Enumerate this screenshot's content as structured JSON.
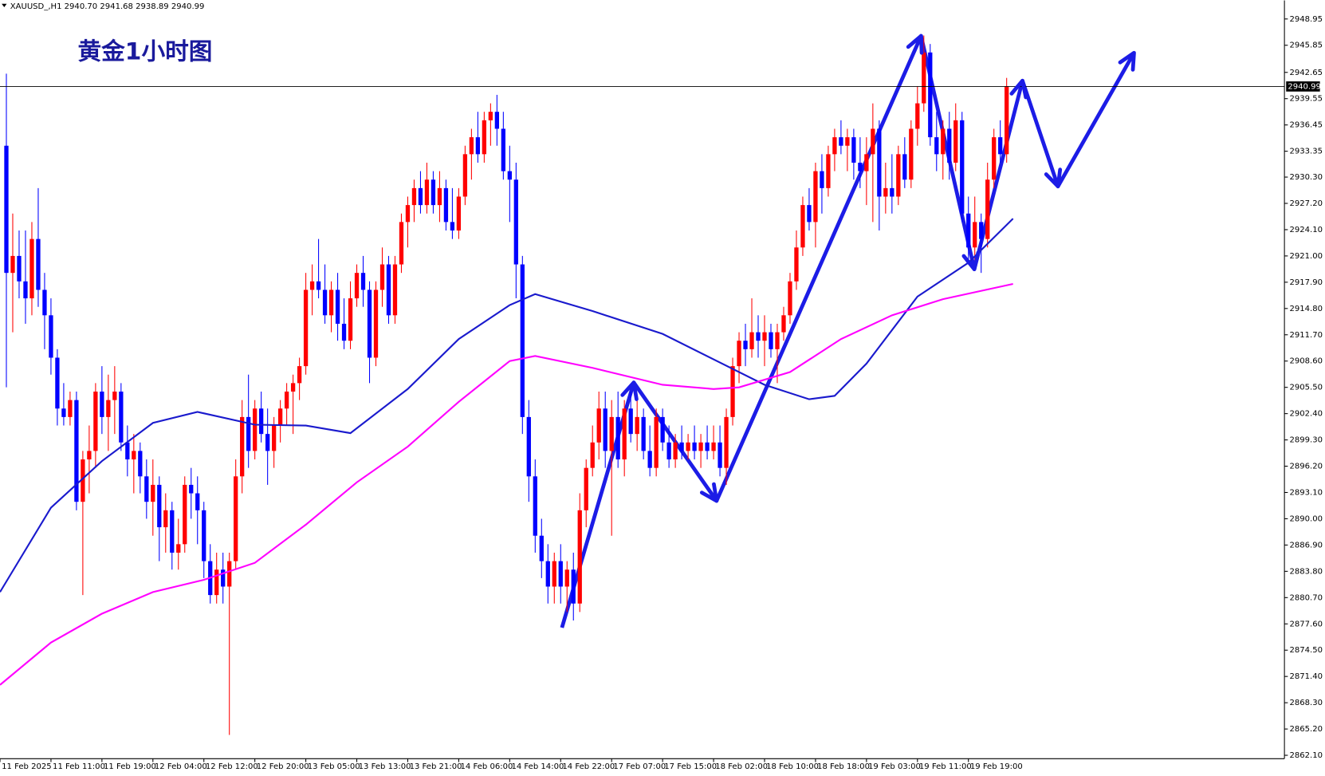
{
  "header": {
    "text": "XAUUSD_,H1  2940.70 2941.68 2938.89 2940.99"
  },
  "chart_data": {
    "type": "candlestick",
    "title": "黄金1小时图",
    "up_color": "#ff0000",
    "down_color": "#0000ff",
    "xlim": [
      -1,
      200.6
    ],
    "ylim": [
      2861.7,
      2951.14
    ],
    "last_price": 2940.99,
    "xticks": [
      {
        "value": -1,
        "label": "11 Feb 2025"
      },
      {
        "value": 7,
        "label": "11 Feb 11:00"
      },
      {
        "value": 15,
        "label": "11 Feb 19:00"
      },
      {
        "value": 23,
        "label": "12 Feb 04:00"
      },
      {
        "value": 31,
        "label": "12 Feb 12:00"
      },
      {
        "value": 39,
        "label": "12 Feb 20:00"
      },
      {
        "value": 47,
        "label": "13 Feb 05:00"
      },
      {
        "value": 55,
        "label": "13 Feb 13:00"
      },
      {
        "value": 63,
        "label": "13 Feb 21:00"
      },
      {
        "value": 71,
        "label": "14 Feb 06:00"
      },
      {
        "value": 79,
        "label": "14 Feb 14:00"
      },
      {
        "value": 87,
        "label": "14 Feb 22:00"
      },
      {
        "value": 95,
        "label": "17 Feb 07:00"
      },
      {
        "value": 103,
        "label": "17 Feb 15:00"
      },
      {
        "value": 111,
        "label": "18 Feb 02:00"
      },
      {
        "value": 119,
        "label": "18 Feb 10:00"
      },
      {
        "value": 127,
        "label": "18 Feb 18:00"
      },
      {
        "value": 135,
        "label": "19 Feb 03:00"
      },
      {
        "value": 143,
        "label": "19 Feb 11:00"
      },
      {
        "value": 151,
        "label": "19 Feb 19:00"
      }
    ],
    "yticks": [
      2948.95,
      2945.85,
      2942.65,
      2939.55,
      2936.45,
      2933.35,
      {
        "value": 2930.3,
        "label": "2930.30"
      },
      {
        "value": 2927.2,
        "label": "2927.20"
      },
      {
        "value": 2924.1,
        "label": "2924.10"
      },
      {
        "value": 2921,
        "label": "2921.00"
      },
      {
        "value": 2917.9,
        "label": "2917.90"
      },
      {
        "value": 2914.8,
        "label": "2914.80"
      },
      {
        "value": 2911.7,
        "label": "2911.70"
      },
      {
        "value": 2908.6,
        "label": "2908.60"
      },
      {
        "value": 2905.5,
        "label": "2905.50"
      },
      {
        "value": 2902.4,
        "label": "2902.40"
      },
      {
        "value": 2899.3,
        "label": "2899.30"
      },
      {
        "value": 2896.2,
        "label": "2896.20"
      },
      {
        "value": 2893.1,
        "label": "2893.10"
      },
      {
        "value": 2890,
        "label": "2890.00"
      },
      {
        "value": 2886.9,
        "label": "2886.90"
      },
      {
        "value": 2883.8,
        "label": "2883.80"
      },
      {
        "value": 2880.7,
        "label": "2880.70"
      },
      {
        "value": 2877.6,
        "label": "2877.60"
      },
      {
        "value": 2874.5,
        "label": "2874.50"
      },
      {
        "value": 2871.4,
        "label": "2871.40"
      },
      {
        "value": 2868.3,
        "label": "2868.30"
      },
      {
        "value": 2865.2,
        "label": "2865.20"
      },
      {
        "value": 2862.1,
        "label": "2862.10"
      }
    ],
    "ohlc": [
      [
        2934,
        2942.5,
        2905.5,
        2919
      ],
      [
        2919,
        2926,
        2912,
        2921
      ],
      [
        2921,
        2924,
        2916,
        2918
      ],
      [
        2918,
        2924,
        2913,
        2916
      ],
      [
        2916,
        2925,
        2914,
        2923
      ],
      [
        2923,
        2929,
        2915,
        2917
      ],
      [
        2917,
        2919,
        2910,
        2914
      ],
      [
        2914,
        2916,
        2907,
        2909
      ],
      [
        2909,
        2910,
        2901,
        2903
      ],
      [
        2903,
        2906,
        2901,
        2902
      ],
      [
        2902,
        2905,
        2901,
        2904
      ],
      [
        2904,
        2905,
        2891,
        2892
      ],
      [
        2892,
        2898,
        2881,
        2897
      ],
      [
        2897,
        2901,
        2893,
        2898
      ],
      [
        2898,
        2906,
        2896,
        2905
      ],
      [
        2905,
        2908,
        2900,
        2902
      ],
      [
        2902,
        2907,
        2898,
        2904
      ],
      [
        2904,
        2908,
        2900,
        2905
      ],
      [
        2905,
        2906,
        2898,
        2899
      ],
      [
        2899,
        2901,
        2895,
        2897
      ],
      [
        2897,
        2900,
        2893,
        2898
      ],
      [
        2898,
        2899,
        2893,
        2895
      ],
      [
        2895,
        2897,
        2890,
        2892
      ],
      [
        2892,
        2897,
        2888,
        2894
      ],
      [
        2894,
        2895,
        2885,
        2889
      ],
      [
        2889,
        2893,
        2886,
        2891
      ],
      [
        2891,
        2892,
        2884,
        2886
      ],
      [
        2886,
        2890,
        2884,
        2887
      ],
      [
        2887,
        2895,
        2886,
        2894
      ],
      [
        2894,
        2896,
        2890,
        2893
      ],
      [
        2893,
        2895,
        2887,
        2891
      ],
      [
        2891,
        2892,
        2883,
        2885
      ],
      [
        2885,
        2887,
        2880,
        2881
      ],
      [
        2881,
        2886,
        2880,
        2884
      ],
      [
        2884,
        2886,
        2880,
        2882
      ],
      [
        2882,
        2886,
        2864.5,
        2885
      ],
      [
        2885,
        2897,
        2884,
        2895
      ],
      [
        2895,
        2904,
        2893,
        2902
      ],
      [
        2902,
        2907,
        2896,
        2898
      ],
      [
        2898,
        2904,
        2897,
        2903
      ],
      [
        2903,
        2905,
        2899,
        2900
      ],
      [
        2900,
        2903,
        2894,
        2898
      ],
      [
        2898,
        2902,
        2896,
        2901
      ],
      [
        2901,
        2904,
        2899,
        2903
      ],
      [
        2903,
        2906,
        2901,
        2905
      ],
      [
        2905,
        2907,
        2900,
        2906
      ],
      [
        2906,
        2909,
        2904,
        2908
      ],
      [
        2908,
        2919,
        2907,
        2917
      ],
      [
        2917,
        2920,
        2914,
        2918
      ],
      [
        2918,
        2923,
        2916,
        2917
      ],
      [
        2917,
        2920,
        2913,
        2914
      ],
      [
        2914,
        2918,
        2912,
        2917
      ],
      [
        2917,
        2919,
        2911,
        2913
      ],
      [
        2913,
        2916,
        2910,
        2911
      ],
      [
        2911,
        2918,
        2910,
        2916
      ],
      [
        2916,
        2920,
        2915,
        2919
      ],
      [
        2919,
        2921,
        2915,
        2917
      ],
      [
        2917,
        2918,
        2906,
        2909
      ],
      [
        2909,
        2918,
        2908,
        2917
      ],
      [
        2917,
        2922,
        2915,
        2920
      ],
      [
        2920,
        2921,
        2913,
        2914
      ],
      [
        2914,
        2921,
        2913,
        2920
      ],
      [
        2920,
        2926,
        2919,
        2925
      ],
      [
        2925,
        2928,
        2922,
        2927
      ],
      [
        2927,
        2930,
        2925,
        2929
      ],
      [
        2929,
        2931,
        2926,
        2927
      ],
      [
        2927,
        2932,
        2926,
        2930
      ],
      [
        2930,
        2931,
        2926,
        2927
      ],
      [
        2927,
        2931,
        2925,
        2929
      ],
      [
        2929,
        2930,
        2924,
        2925
      ],
      [
        2925,
        2929,
        2923,
        2924
      ],
      [
        2924,
        2929,
        2923,
        2928
      ],
      [
        2928,
        2934,
        2927,
        2933
      ],
      [
        2933,
        2936,
        2930,
        2935
      ],
      [
        2935,
        2938,
        2932,
        2933
      ],
      [
        2933,
        2938,
        2932,
        2937
      ],
      [
        2937,
        2939,
        2934,
        2938
      ],
      [
        2938,
        2940,
        2934,
        2936
      ],
      [
        2936,
        2938,
        2930,
        2931
      ],
      [
        2931,
        2934,
        2925,
        2930
      ],
      [
        2930,
        2932,
        2916,
        2920
      ],
      [
        2920,
        2921,
        2900,
        2902
      ],
      [
        2902,
        2904,
        2892,
        2895
      ],
      [
        2895,
        2897,
        2886,
        2888
      ],
      [
        2888,
        2890,
        2883,
        2885
      ],
      [
        2885,
        2887,
        2880,
        2882
      ],
      [
        2882,
        2886,
        2880,
        2885
      ],
      [
        2885,
        2887,
        2880,
        2882
      ],
      [
        2882,
        2885,
        2879,
        2884
      ],
      [
        2884,
        2886,
        2878,
        2880
      ],
      [
        2880,
        2893,
        2879,
        2891
      ],
      [
        2891,
        2897,
        2889,
        2896
      ],
      [
        2896,
        2901,
        2895,
        2899
      ],
      [
        2899,
        2905,
        2897,
        2903
      ],
      [
        2903,
        2905,
        2896,
        2898
      ],
      [
        2898,
        2904,
        2888,
        2902
      ],
      [
        2902,
        2905,
        2896,
        2897
      ],
      [
        2897,
        2904,
        2895,
        2903
      ],
      [
        2903,
        2905,
        2899,
        2900
      ],
      [
        2900,
        2904,
        2898,
        2902
      ],
      [
        2902,
        2903,
        2897,
        2898
      ],
      [
        2898,
        2901,
        2895,
        2896
      ],
      [
        2896,
        2903,
        2895,
        2902
      ],
      [
        2902,
        2903,
        2898,
        2899
      ],
      [
        2899,
        2901,
        2896,
        2897
      ],
      [
        2897,
        2900,
        2896,
        2899
      ],
      [
        2899,
        2901,
        2897,
        2898
      ],
      [
        2898,
        2900,
        2897,
        2899
      ],
      [
        2899,
        2901,
        2897,
        2898
      ],
      [
        2898,
        2900,
        2896,
        2899
      ],
      [
        2899,
        2901,
        2897,
        2898
      ],
      [
        2898,
        2901,
        2897,
        2899
      ],
      [
        2899,
        2901,
        2895,
        2896
      ],
      [
        2896,
        2903,
        2894,
        2902
      ],
      [
        2902,
        2909,
        2901,
        2908
      ],
      [
        2908,
        2912,
        2906,
        2911
      ],
      [
        2911,
        2913,
        2908,
        2910
      ],
      [
        2910,
        2916,
        2909,
        2912
      ],
      [
        2912,
        2914,
        2909,
        2911
      ],
      [
        2911,
        2914,
        2908,
        2912
      ],
      [
        2912,
        2913,
        2909,
        2910
      ],
      [
        2910,
        2913,
        2906,
        2912
      ],
      [
        2912,
        2915,
        2911,
        2914
      ],
      [
        2914,
        2919,
        2913,
        2918
      ],
      [
        2918,
        2924,
        2917,
        2922
      ],
      [
        2922,
        2928,
        2921,
        2927
      ],
      [
        2927,
        2929,
        2924,
        2925
      ],
      [
        2925,
        2932,
        2922,
        2931
      ],
      [
        2931,
        2933,
        2926,
        2929
      ],
      [
        2929,
        2934,
        2928,
        2933
      ],
      [
        2933,
        2936,
        2931,
        2935
      ],
      [
        2935,
        2937,
        2933,
        2934
      ],
      [
        2934,
        2936,
        2931,
        2935
      ],
      [
        2935,
        2936,
        2930,
        2932
      ],
      [
        2932,
        2935,
        2929,
        2931
      ],
      [
        2931,
        2935,
        2927,
        2933
      ],
      [
        2933,
        2939,
        2925,
        2936
      ],
      [
        2936,
        2937,
        2924,
        2928
      ],
      [
        2928,
        2932,
        2926,
        2929
      ],
      [
        2929,
        2933,
        2926,
        2928
      ],
      [
        2928,
        2934,
        2927,
        2933
      ],
      [
        2933,
        2935,
        2929,
        2930
      ],
      [
        2930,
        2937,
        2929,
        2936
      ],
      [
        2936,
        2941,
        2934,
        2939
      ],
      [
        2939,
        2947,
        2938,
        2945
      ],
      [
        2945,
        2946,
        2934,
        2935
      ],
      [
        2935,
        2938,
        2931,
        2933
      ],
      [
        2933,
        2937,
        2930,
        2936
      ],
      [
        2936,
        2938,
        2930,
        2932
      ],
      [
        2932,
        2939,
        2931,
        2937
      ],
      [
        2937,
        2938,
        2925,
        2926
      ],
      [
        2926,
        2928,
        2920,
        2922
      ],
      [
        2922,
        2928,
        2920,
        2925
      ],
      [
        2925,
        2926,
        2919,
        2923
      ],
      [
        2923,
        2932,
        2922,
        2930
      ],
      [
        2930,
        2936,
        2929,
        2935
      ],
      [
        2935,
        2937,
        2932,
        2933
      ],
      [
        2933,
        2942,
        2932,
        2940.99
      ]
    ],
    "moving_averages": [
      {
        "color": "#1a1acd",
        "x": [
          -1,
          7,
          15,
          23,
          30,
          39,
          47,
          54,
          63,
          71,
          79,
          83,
          92,
          103,
          111,
          119,
          126,
          130,
          135,
          143,
          151,
          158
        ],
        "values": [
          2881.35,
          2891.3,
          2896.8,
          2901.3,
          2902.6,
          2901.1,
          2901.0,
          2900.1,
          2905.3,
          2911.2,
          2915.2,
          2916.5,
          2914.5,
          2911.8,
          2908.8,
          2905.8,
          2904.1,
          2904.5,
          2908.3,
          2916.2,
          2920.2,
          2925.4
        ]
      },
      {
        "color": "#ff00ff",
        "x": [
          -1,
          7,
          15,
          23,
          31,
          39,
          47,
          55,
          63,
          71,
          79,
          83,
          92,
          103,
          111,
          115,
          123,
          131,
          139,
          147,
          158
        ],
        "values": [
          2870.4,
          2875.4,
          2878.8,
          2881.35,
          2882.8,
          2884.8,
          2889.3,
          2894.3,
          2898.5,
          2903.8,
          2908.6,
          2909.2,
          2907.8,
          2905.8,
          2905.3,
          2905.5,
          2907.3,
          2911.2,
          2914.0,
          2915.9,
          2917.7
        ]
      }
    ]
  }
}
